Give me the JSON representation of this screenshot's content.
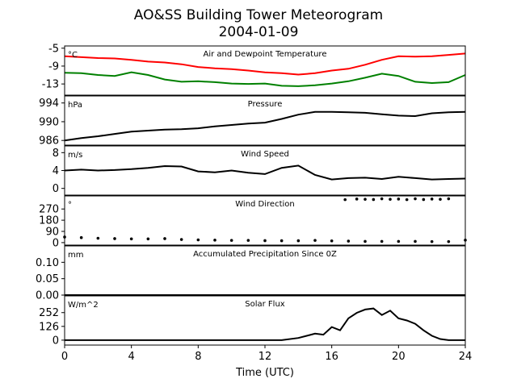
{
  "figure": {
    "title": "AO&SS Building Tower Meteorogram",
    "subtitle": "2004-01-09",
    "xlabel": "Time (UTC)"
  },
  "chart_data": [
    {
      "type": "line",
      "panel_title": "Air and Dewpoint Temperature",
      "unit_label": "°C",
      "xlim": [
        0,
        24
      ],
      "ylim": [
        -15.5,
        -4.5
      ],
      "yticks": [
        -13,
        -9,
        -5
      ],
      "series": [
        {
          "color": "#ff0000",
          "x": [
            0,
            1,
            2,
            3,
            4,
            5,
            6,
            7,
            8,
            9,
            10,
            11,
            12,
            13,
            14,
            15,
            16,
            17,
            18,
            19,
            20,
            21,
            22,
            23,
            24
          ],
          "y": [
            -6.8,
            -7.0,
            -7.2,
            -7.3,
            -7.6,
            -8.0,
            -8.2,
            -8.6,
            -9.2,
            -9.5,
            -9.7,
            -10.0,
            -10.4,
            -10.6,
            -10.9,
            -10.6,
            -10.0,
            -9.6,
            -8.7,
            -7.6,
            -6.8,
            -6.9,
            -6.8,
            -6.5,
            -6.2
          ]
        },
        {
          "color": "#008000",
          "x": [
            0,
            1,
            2,
            3,
            4,
            5,
            6,
            7,
            8,
            9,
            10,
            11,
            12,
            13,
            14,
            15,
            16,
            17,
            18,
            19,
            20,
            21,
            22,
            23,
            24
          ],
          "y": [
            -10.5,
            -10.6,
            -11.0,
            -11.2,
            -10.4,
            -11.0,
            -12.0,
            -12.5,
            -12.4,
            -12.6,
            -12.9,
            -13.0,
            -12.9,
            -13.4,
            -13.5,
            -13.3,
            -12.9,
            -12.4,
            -11.6,
            -10.7,
            -11.2,
            -12.5,
            -12.8,
            -12.6,
            -11.0
          ]
        }
      ]
    },
    {
      "type": "line",
      "panel_title": "Pressure",
      "unit_label": "hPa",
      "xlim": [
        0,
        24
      ],
      "ylim": [
        985,
        995.5
      ],
      "yticks": [
        986,
        990,
        994
      ],
      "series": [
        {
          "color": "#000000",
          "x": [
            0,
            1,
            2,
            3,
            4,
            5,
            6,
            7,
            8,
            9,
            10,
            11,
            12,
            13,
            14,
            15,
            16,
            17,
            18,
            19,
            20,
            21,
            22,
            23,
            24
          ],
          "y": [
            986.0,
            986.5,
            986.9,
            987.4,
            987.9,
            988.1,
            988.3,
            988.4,
            988.6,
            989.0,
            989.3,
            989.6,
            989.8,
            990.6,
            991.5,
            992.1,
            992.1,
            992.0,
            991.9,
            991.6,
            991.3,
            991.2,
            991.8,
            992.0,
            992.1
          ]
        }
      ]
    },
    {
      "type": "line",
      "panel_title": "Wind Speed",
      "unit_label": "m/s",
      "xlim": [
        0,
        24
      ],
      "ylim": [
        -1.5,
        9.5
      ],
      "yticks": [
        0,
        4,
        8
      ],
      "series": [
        {
          "color": "#000000",
          "x": [
            0,
            1,
            2,
            3,
            4,
            5,
            6,
            7,
            8,
            9,
            10,
            11,
            12,
            13,
            14,
            15,
            16,
            17,
            18,
            19,
            20,
            21,
            22,
            23,
            24
          ],
          "y": [
            4.0,
            4.2,
            4.0,
            4.1,
            4.3,
            4.6,
            5.0,
            4.9,
            3.8,
            3.6,
            4.0,
            3.5,
            3.2,
            4.6,
            5.1,
            3.0,
            2.0,
            2.3,
            2.4,
            2.1,
            2.6,
            2.3,
            2.0,
            2.1,
            2.2
          ]
        }
      ]
    },
    {
      "type": "scatter",
      "panel_title": "Wind Direction",
      "unit_label": "°",
      "xlim": [
        0,
        24
      ],
      "ylim": [
        -20,
        375
      ],
      "yticks": [
        0,
        90,
        180,
        270
      ],
      "series": [
        {
          "color": "#000000",
          "x": [
            0,
            1,
            2,
            3,
            4,
            5,
            6,
            7,
            8,
            9,
            10,
            11,
            12,
            13,
            14,
            15,
            16,
            17,
            18,
            19,
            20,
            21,
            22,
            23,
            24
          ],
          "y": [
            45,
            40,
            35,
            32,
            30,
            30,
            32,
            25,
            22,
            20,
            18,
            18,
            16,
            15,
            15,
            18,
            14,
            12,
            10,
            10,
            10,
            10,
            8,
            8,
            20
          ]
        },
        {
          "color": "#000000",
          "x": [
            16.8,
            17.5,
            18,
            18.5,
            19,
            19.5,
            20,
            20.5,
            21,
            21.5,
            22,
            22.5,
            23
          ],
          "y": [
            345,
            350,
            348,
            346,
            352,
            348,
            350,
            345,
            352,
            346,
            350,
            348,
            352
          ]
        }
      ]
    },
    {
      "type": "line",
      "panel_title": "Accumulated Precipitation Since 0Z",
      "unit_label": "mm",
      "xlim": [
        0,
        24
      ],
      "ylim": [
        0,
        0.15
      ],
      "yticks": [
        0.0,
        0.05,
        0.1
      ],
      "ytick_labels": [
        "0.00",
        "0.05",
        "0.10"
      ],
      "series": [
        {
          "color": "#000000",
          "x": [
            0,
            24
          ],
          "y": [
            0,
            0
          ]
        }
      ]
    },
    {
      "type": "line",
      "panel_title": "Solar Flux",
      "unit_label": "W/m^2",
      "xlim": [
        0,
        24
      ],
      "ylim": [
        -45,
        405
      ],
      "yticks": [
        0,
        126,
        252
      ],
      "series": [
        {
          "color": "#000000",
          "x": [
            0,
            1,
            2,
            3,
            4,
            5,
            6,
            7,
            8,
            9,
            10,
            11,
            12,
            13,
            14,
            14.5,
            15,
            15.5,
            16,
            16.5,
            17,
            17.5,
            18,
            18.5,
            19,
            19.5,
            20,
            20.5,
            21,
            21.5,
            22,
            22.5,
            23,
            24
          ],
          "y": [
            0,
            0,
            0,
            0,
            0,
            0,
            0,
            0,
            0,
            0,
            0,
            0,
            0,
            0,
            20,
            40,
            60,
            50,
            120,
            90,
            200,
            250,
            280,
            290,
            230,
            270,
            200,
            180,
            150,
            90,
            40,
            10,
            0,
            0
          ]
        }
      ]
    }
  ]
}
